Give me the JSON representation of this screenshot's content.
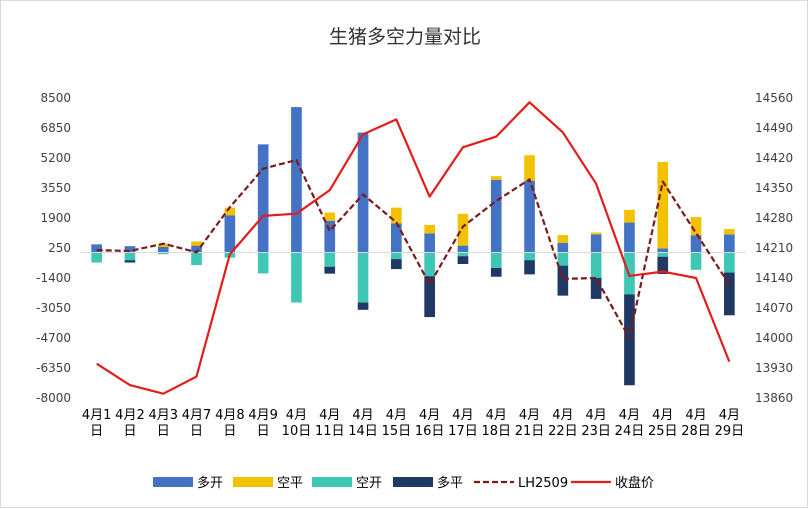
{
  "chart_data": {
    "type": "bar",
    "title": "生猪多空力量对比",
    "categories": [
      [
        "4月1",
        "日"
      ],
      [
        "4月2",
        "日"
      ],
      [
        "4月3",
        "日"
      ],
      [
        "4月7",
        "日"
      ],
      [
        "4月8",
        "日"
      ],
      [
        "4月9",
        "日"
      ],
      [
        "4月",
        "10日"
      ],
      [
        "4月",
        "11日"
      ],
      [
        "4月",
        "14日"
      ],
      [
        "4月",
        "15日"
      ],
      [
        "4月",
        "16日"
      ],
      [
        "4月",
        "17日"
      ],
      [
        "4月",
        "18日"
      ],
      [
        "4月",
        "21日"
      ],
      [
        "4月",
        "22日"
      ],
      [
        "4月",
        "23日"
      ],
      [
        "4月",
        "24日"
      ],
      [
        "4月",
        "25日"
      ],
      [
        "4月",
        "28日"
      ],
      [
        "4月",
        "29日"
      ]
    ],
    "left_ticks": [
      "8500",
      "6850",
      "5200",
      "3550",
      "1900",
      "250",
      "-1400",
      "-3050",
      "-4700",
      "-6350",
      "-8000"
    ],
    "right_ticks": [
      "14560",
      "14490",
      "14420",
      "14350",
      "14280",
      "14210",
      "14140",
      "14070",
      "14000",
      "13930",
      "13860"
    ],
    "ylim_left": [
      -8000,
      8500
    ],
    "ylim_right": [
      13860,
      14560
    ],
    "bar_series": [
      {
        "name": "多开",
        "color": "#4472c4",
        "values": [
          450,
          350,
          310,
          380,
          2050,
          5950,
          8000,
          1750,
          6600,
          1600,
          1050,
          380,
          4000,
          3950,
          540,
          1000,
          1650,
          230,
          950,
          1000
        ]
      },
      {
        "name": "空平",
        "color": "#f2c200",
        "values": [
          0,
          0,
          180,
          230,
          420,
          0,
          0,
          450,
          0,
          870,
          470,
          1750,
          200,
          1400,
          420,
          100,
          700,
          4750,
          1000,
          300
        ]
      },
      {
        "name": "空开",
        "color": "#3ec7b5",
        "values": [
          -550,
          -420,
          -90,
          -690,
          -280,
          -1150,
          -2750,
          -780,
          -2750,
          -360,
          -1300,
          -200,
          -850,
          -420,
          -720,
          -1400,
          -2300,
          -230,
          -950,
          -1100
        ]
      },
      {
        "name": "多平",
        "color": "#1f3864",
        "values": [
          0,
          -130,
          0,
          0,
          0,
          0,
          0,
          -380,
          -400,
          -550,
          -2250,
          -430,
          -480,
          -780,
          -1650,
          -1150,
          -5000,
          -950,
          0,
          -2350
        ]
      }
    ],
    "line_series": [
      {
        "name": "LH2509",
        "color": "#7b1a1a",
        "style": "dashed",
        "values": [
          14205,
          14203,
          14220,
          14200,
          14305,
          14395,
          14415,
          14250,
          14335,
          14270,
          14125,
          14260,
          14320,
          14370,
          14138,
          14140,
          14000,
          14365,
          14245,
          14125
        ]
      },
      {
        "name": "收盘价",
        "color": "#e31c1c",
        "style": "solid",
        "values": [
          13940,
          13890,
          13870,
          13910,
          14195,
          14285,
          14290,
          14345,
          14475,
          14510,
          14330,
          14445,
          14470,
          14550,
          14480,
          14360,
          14145,
          14155,
          14140,
          13945
        ]
      }
    ],
    "grid": false,
    "legend_position": "bottom"
  }
}
